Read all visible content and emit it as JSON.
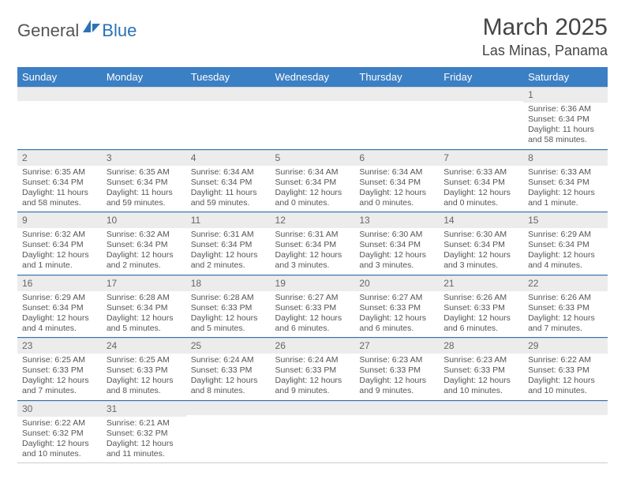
{
  "logo": {
    "part1": "General",
    "part2": "Blue"
  },
  "title": "March 2025",
  "location": "Las Minas, Panama",
  "colors": {
    "header_bg": "#3b7fc4",
    "header_fg": "#ffffff",
    "row_divider": "#2b72b8",
    "daynum_bg": "#ececec",
    "text": "#555555",
    "logo_gray": "#545454",
    "logo_blue": "#2b72b8"
  },
  "weekdays": [
    "Sunday",
    "Monday",
    "Tuesday",
    "Wednesday",
    "Thursday",
    "Friday",
    "Saturday"
  ],
  "weeks": [
    [
      null,
      null,
      null,
      null,
      null,
      null,
      {
        "d": "1",
        "sr": "6:36 AM",
        "ss": "6:34 PM",
        "dl": "11 hours and 58 minutes."
      }
    ],
    [
      {
        "d": "2",
        "sr": "6:35 AM",
        "ss": "6:34 PM",
        "dl": "11 hours and 58 minutes."
      },
      {
        "d": "3",
        "sr": "6:35 AM",
        "ss": "6:34 PM",
        "dl": "11 hours and 59 minutes."
      },
      {
        "d": "4",
        "sr": "6:34 AM",
        "ss": "6:34 PM",
        "dl": "11 hours and 59 minutes."
      },
      {
        "d": "5",
        "sr": "6:34 AM",
        "ss": "6:34 PM",
        "dl": "12 hours and 0 minutes."
      },
      {
        "d": "6",
        "sr": "6:34 AM",
        "ss": "6:34 PM",
        "dl": "12 hours and 0 minutes."
      },
      {
        "d": "7",
        "sr": "6:33 AM",
        "ss": "6:34 PM",
        "dl": "12 hours and 0 minutes."
      },
      {
        "d": "8",
        "sr": "6:33 AM",
        "ss": "6:34 PM",
        "dl": "12 hours and 1 minute."
      }
    ],
    [
      {
        "d": "9",
        "sr": "6:32 AM",
        "ss": "6:34 PM",
        "dl": "12 hours and 1 minute."
      },
      {
        "d": "10",
        "sr": "6:32 AM",
        "ss": "6:34 PM",
        "dl": "12 hours and 2 minutes."
      },
      {
        "d": "11",
        "sr": "6:31 AM",
        "ss": "6:34 PM",
        "dl": "12 hours and 2 minutes."
      },
      {
        "d": "12",
        "sr": "6:31 AM",
        "ss": "6:34 PM",
        "dl": "12 hours and 3 minutes."
      },
      {
        "d": "13",
        "sr": "6:30 AM",
        "ss": "6:34 PM",
        "dl": "12 hours and 3 minutes."
      },
      {
        "d": "14",
        "sr": "6:30 AM",
        "ss": "6:34 PM",
        "dl": "12 hours and 3 minutes."
      },
      {
        "d": "15",
        "sr": "6:29 AM",
        "ss": "6:34 PM",
        "dl": "12 hours and 4 minutes."
      }
    ],
    [
      {
        "d": "16",
        "sr": "6:29 AM",
        "ss": "6:34 PM",
        "dl": "12 hours and 4 minutes."
      },
      {
        "d": "17",
        "sr": "6:28 AM",
        "ss": "6:34 PM",
        "dl": "12 hours and 5 minutes."
      },
      {
        "d": "18",
        "sr": "6:28 AM",
        "ss": "6:33 PM",
        "dl": "12 hours and 5 minutes."
      },
      {
        "d": "19",
        "sr": "6:27 AM",
        "ss": "6:33 PM",
        "dl": "12 hours and 6 minutes."
      },
      {
        "d": "20",
        "sr": "6:27 AM",
        "ss": "6:33 PM",
        "dl": "12 hours and 6 minutes."
      },
      {
        "d": "21",
        "sr": "6:26 AM",
        "ss": "6:33 PM",
        "dl": "12 hours and 6 minutes."
      },
      {
        "d": "22",
        "sr": "6:26 AM",
        "ss": "6:33 PM",
        "dl": "12 hours and 7 minutes."
      }
    ],
    [
      {
        "d": "23",
        "sr": "6:25 AM",
        "ss": "6:33 PM",
        "dl": "12 hours and 7 minutes."
      },
      {
        "d": "24",
        "sr": "6:25 AM",
        "ss": "6:33 PM",
        "dl": "12 hours and 8 minutes."
      },
      {
        "d": "25",
        "sr": "6:24 AM",
        "ss": "6:33 PM",
        "dl": "12 hours and 8 minutes."
      },
      {
        "d": "26",
        "sr": "6:24 AM",
        "ss": "6:33 PM",
        "dl": "12 hours and 9 minutes."
      },
      {
        "d": "27",
        "sr": "6:23 AM",
        "ss": "6:33 PM",
        "dl": "12 hours and 9 minutes."
      },
      {
        "d": "28",
        "sr": "6:23 AM",
        "ss": "6:33 PM",
        "dl": "12 hours and 10 minutes."
      },
      {
        "d": "29",
        "sr": "6:22 AM",
        "ss": "6:33 PM",
        "dl": "12 hours and 10 minutes."
      }
    ],
    [
      {
        "d": "30",
        "sr": "6:22 AM",
        "ss": "6:32 PM",
        "dl": "12 hours and 10 minutes."
      },
      {
        "d": "31",
        "sr": "6:21 AM",
        "ss": "6:32 PM",
        "dl": "12 hours and 11 minutes."
      },
      null,
      null,
      null,
      null,
      null
    ]
  ],
  "labels": {
    "sunrise": "Sunrise:",
    "sunset": "Sunset:",
    "daylight": "Daylight:"
  }
}
